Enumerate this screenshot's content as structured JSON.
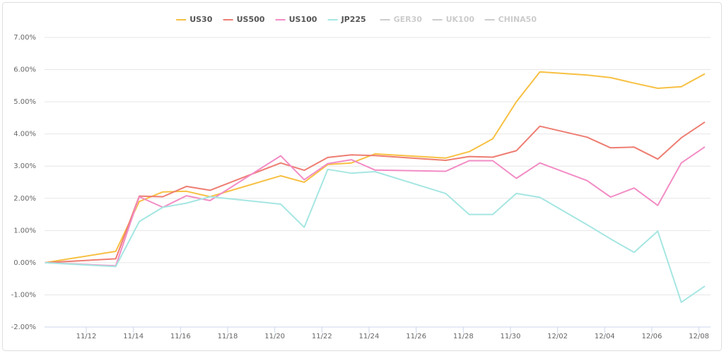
{
  "chart_data": {
    "type": "line",
    "x": [
      "11/10",
      "11/13",
      "11/14",
      "11/15",
      "11/16",
      "11/17",
      "11/20",
      "11/21",
      "11/22",
      "11/23",
      "11/24",
      "11/27",
      "11/28",
      "11/29",
      "11/30",
      "12/01",
      "12/03",
      "12/04",
      "12/05",
      "12/06",
      "12/07",
      "12/08"
    ],
    "series": [
      {
        "name": "US30",
        "color": "#f7c042",
        "visible": true,
        "values": [
          0,
          0.35,
          1.9,
          2.2,
          2.22,
          2.05,
          2.7,
          2.5,
          3.05,
          3.1,
          3.38,
          3.25,
          3.45,
          3.85,
          5.0,
          5.93,
          5.83,
          5.75,
          5.58,
          5.42,
          5.47,
          5.87
        ]
      },
      {
        "name": "US500",
        "color": "#ee7d72",
        "visible": true,
        "values": [
          0,
          0.12,
          2.07,
          2.05,
          2.37,
          2.25,
          3.1,
          2.87,
          3.27,
          3.35,
          3.33,
          3.18,
          3.3,
          3.28,
          3.48,
          4.24,
          3.9,
          3.57,
          3.59,
          3.22,
          3.88,
          4.37
        ]
      },
      {
        "name": "US100",
        "color": "#f28cc5",
        "visible": true,
        "values": [
          0,
          -0.1,
          2.05,
          1.72,
          2.08,
          1.93,
          3.32,
          2.58,
          3.08,
          3.2,
          2.88,
          2.84,
          3.17,
          3.17,
          2.62,
          3.1,
          2.55,
          2.04,
          2.32,
          1.78,
          3.1,
          3.6
        ]
      },
      {
        "name": "JP225",
        "color": "#a5e6e2",
        "visible": true,
        "values": [
          0,
          -0.12,
          1.28,
          1.72,
          1.85,
          2.05,
          1.82,
          1.1,
          2.9,
          2.78,
          2.83,
          2.15,
          1.5,
          1.5,
          2.15,
          2.03,
          1.18,
          0.74,
          0.32,
          0.98,
          -1.23,
          -0.73
        ]
      },
      {
        "name": "GER30",
        "color": "#cccccc",
        "visible": false,
        "values": [
          null,
          null,
          null,
          null,
          null,
          null,
          null,
          null,
          null,
          null,
          null,
          null,
          null,
          null,
          null,
          null,
          null,
          null,
          null,
          null,
          null,
          null
        ]
      },
      {
        "name": "UK100",
        "color": "#cccccc",
        "visible": false,
        "values": [
          null,
          null,
          null,
          null,
          null,
          null,
          null,
          null,
          null,
          null,
          null,
          null,
          null,
          null,
          null,
          null,
          null,
          null,
          null,
          null,
          null,
          null
        ]
      },
      {
        "name": "CHINA50",
        "color": "#cccccc",
        "visible": false,
        "values": [
          null,
          null,
          null,
          null,
          null,
          null,
          null,
          null,
          null,
          null,
          null,
          null,
          null,
          null,
          null,
          null,
          null,
          null,
          null,
          null,
          null,
          null
        ]
      }
    ],
    "ylim": [
      -2,
      7
    ],
    "yticks": [
      {
        "value": -2,
        "label": "-2.00%"
      },
      {
        "value": -1,
        "label": "-1.00%"
      },
      {
        "value": 0,
        "label": "0.00%"
      },
      {
        "value": 1,
        "label": "1.00%"
      },
      {
        "value": 2,
        "label": "2.00%"
      },
      {
        "value": 3,
        "label": "3.00%"
      },
      {
        "value": 4,
        "label": "4.00%"
      },
      {
        "value": 5,
        "label": "5.00%"
      },
      {
        "value": 6,
        "label": "6.00%"
      },
      {
        "value": 7,
        "label": "7.00%"
      }
    ],
    "xticks": [
      "11/12",
      "11/14",
      "11/16",
      "11/18",
      "11/20",
      "11/22",
      "11/24",
      "11/26",
      "11/28",
      "11/30",
      "12/02",
      "12/04",
      "12/06",
      "12/08"
    ],
    "grid": true
  }
}
